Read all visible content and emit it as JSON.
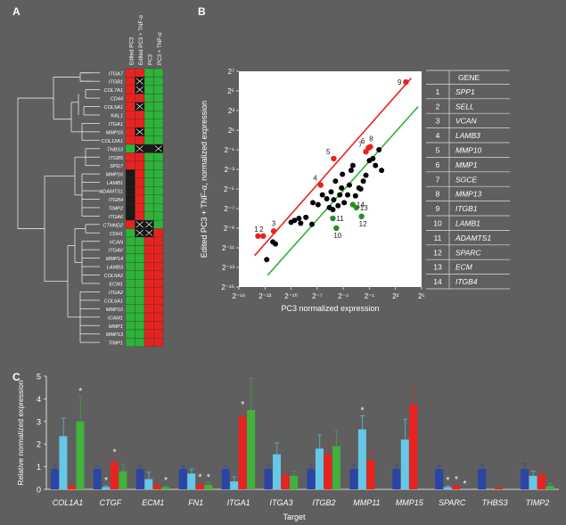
{
  "panel_a": {
    "letter": "A",
    "column_labels": [
      "Edited PC3",
      "Edited PC3 + TNF-α",
      "PC3",
      "PC3 + TNF-α"
    ],
    "genes": [
      "ITGA7",
      "ITGB1",
      "COL7A1",
      "CD44",
      "COL5A1",
      "KAL1",
      "ITGA1",
      "MMP15",
      "COL12A1",
      "THBS3",
      "ITGB5",
      "SPG7",
      "MMP16",
      "LAMB1",
      "ADAMTS1",
      "ITGB4",
      "TIMP2",
      "ITGA6",
      "CTNND2",
      "CDH1",
      "VCAN",
      "ITGAV",
      "MMP14",
      "LAMB3",
      "COL6A2",
      "ECM1",
      "ITGA2",
      "COL6A1",
      "MMP10",
      "ICAM1",
      "MMP1",
      "MMP13",
      "TIMP1"
    ],
    "cells": [
      [
        "r",
        "r",
        "g",
        "g"
      ],
      [
        "r",
        "x",
        "g",
        "g"
      ],
      [
        "r",
        "x",
        "g",
        "g"
      ],
      [
        "r",
        "r",
        "g",
        "g"
      ],
      [
        "r",
        "x",
        "g",
        "g"
      ],
      [
        "r",
        "r",
        "g",
        "g"
      ],
      [
        "r",
        "r",
        "g",
        "g"
      ],
      [
        "r",
        "x",
        "g",
        "g"
      ],
      [
        "r",
        "r",
        "g",
        "g"
      ],
      [
        "g",
        "x",
        "k",
        "x"
      ],
      [
        "r",
        "r",
        "g",
        "g"
      ],
      [
        "r",
        "r",
        "g",
        "g"
      ],
      [
        "k",
        "r",
        "g",
        "g"
      ],
      [
        "k",
        "r",
        "g",
        "g"
      ],
      [
        "k",
        "r",
        "g",
        "g"
      ],
      [
        "k",
        "r",
        "g",
        "g"
      ],
      [
        "k",
        "r",
        "g",
        "g"
      ],
      [
        "k",
        "r",
        "g",
        "g"
      ],
      [
        "r",
        "x",
        "x",
        "g"
      ],
      [
        "g",
        "x",
        "x",
        "r"
      ],
      [
        "g",
        "g",
        "r",
        "r"
      ],
      [
        "g",
        "g",
        "r",
        "r"
      ],
      [
        "g",
        "g",
        "r",
        "r"
      ],
      [
        "g",
        "g",
        "r",
        "r"
      ],
      [
        "g",
        "g",
        "r",
        "r"
      ],
      [
        "g",
        "g",
        "r",
        "r"
      ],
      [
        "g",
        "g",
        "r",
        "r"
      ],
      [
        "g",
        "g",
        "r",
        "r"
      ],
      [
        "g",
        "g",
        "r",
        "r"
      ],
      [
        "g",
        "g",
        "r",
        "r"
      ],
      [
        "g",
        "g",
        "r",
        "r"
      ],
      [
        "g",
        "g",
        "r",
        "r"
      ],
      [
        "g",
        "g",
        "r",
        "r"
      ]
    ],
    "colors": {
      "r": "#e8231f",
      "g": "#2fb23a",
      "k": "#1a1a1a",
      "x": "#111111"
    }
  },
  "panel_b": {
    "letter": "B",
    "table_header": "GENE",
    "table_rows": [
      {
        "num": "1",
        "gene": "SPP1"
      },
      {
        "num": "2",
        "gene": "SELL"
      },
      {
        "num": "3",
        "gene": "VCAN"
      },
      {
        "num": "4",
        "gene": "LAMB3"
      },
      {
        "num": "5",
        "gene": "MMP10"
      },
      {
        "num": "6",
        "gene": "MMP1"
      },
      {
        "num": "7",
        "gene": "SGCE"
      },
      {
        "num": "8",
        "gene": "MMP13"
      },
      {
        "num": "9",
        "gene": "ITGB1"
      },
      {
        "num": "10",
        "gene": "LAMB1"
      },
      {
        "num": "11",
        "gene": "ADAMTS1"
      },
      {
        "num": "12",
        "gene": "SPARC"
      },
      {
        "num": "13",
        "gene": "ECM"
      },
      {
        "num": "14",
        "gene": "ITGB4"
      }
    ]
  },
  "panel_c": {
    "letter": "C"
  },
  "chart_data": [
    {
      "type": "scatter",
      "title": "",
      "xlabel": "PC3 normalized expression",
      "ylabel": "Edited PC3 + TNF-α, normalized expression",
      "axis_scale": "log2",
      "xlim": [
        -16,
        5
      ],
      "ylim": [
        -15,
        7
      ],
      "x_ticks": [
        "2⁻¹⁶",
        "2⁻¹³",
        "2⁻¹⁰",
        "2⁻⁷",
        "2⁻⁴",
        "2⁻¹",
        "2²",
        "2⁵"
      ],
      "x_tick_values": [
        -16,
        -13,
        -10,
        -7,
        -4,
        -1,
        2,
        5
      ],
      "y_ticks": [
        "2⁻¹⁵",
        "2⁻¹³",
        "2⁻¹¹",
        "2⁻⁹",
        "2⁻⁷",
        "2⁻⁵",
        "2⁻³",
        "2⁻¹",
        "2¹",
        "2³",
        "2⁵",
        "2⁷"
      ],
      "y_tick_values": [
        -15,
        -13,
        -11,
        -9,
        -7,
        -5,
        -3,
        -1,
        1,
        3,
        5,
        7
      ],
      "lines": [
        {
          "color": "#e8231f",
          "x": [
            -14.2,
            3.8
          ],
          "y": [
            -11.8,
            6.3
          ]
        },
        {
          "color": "#2fb23a",
          "x": [
            -12.7,
            4.6
          ],
          "y": [
            -13.8,
            3.4
          ]
        }
      ],
      "points_black": [
        [
          -12.8,
          -12.2
        ],
        [
          -12.1,
          -10.4
        ],
        [
          -11.8,
          -10.6
        ],
        [
          -10.0,
          -8.4
        ],
        [
          -9.6,
          -8.2
        ],
        [
          -9.1,
          -8.0
        ],
        [
          -8.9,
          -8.5
        ],
        [
          -8.3,
          -7.9
        ],
        [
          -7.6,
          -8.6
        ],
        [
          -7.5,
          -6.4
        ],
        [
          -6.9,
          -6.6
        ],
        [
          -6.4,
          -5.6
        ],
        [
          -5.9,
          -6.0
        ],
        [
          -5.6,
          -6.9
        ],
        [
          -5.4,
          -5.3
        ],
        [
          -5.1,
          -6.1
        ],
        [
          -5.2,
          -7.1
        ],
        [
          -4.9,
          -4.2
        ],
        [
          -4.6,
          -6.7
        ],
        [
          -4.4,
          -5.6
        ],
        [
          -4.2,
          -4.9
        ],
        [
          -4.1,
          -3.5
        ],
        [
          -3.9,
          -6.4
        ],
        [
          -3.5,
          -5.6
        ],
        [
          -3.3,
          -4.6
        ],
        [
          -3.1,
          -3.1
        ],
        [
          -2.9,
          -2.6
        ],
        [
          -2.6,
          -5.7
        ],
        [
          -2.2,
          -4.9
        ],
        [
          -2.0,
          -5.0
        ],
        [
          -1.7,
          -4.2
        ],
        [
          -1.4,
          -3.6
        ],
        [
          -1.0,
          -2.1
        ],
        [
          -0.6,
          -1.9
        ],
        [
          -0.3,
          -2.6
        ],
        [
          0.1,
          -1.0
        ],
        [
          0.4,
          -3.1
        ]
      ],
      "points_red": [
        {
          "label": "9",
          "x": 3.2,
          "y": 5.9
        },
        {
          "label": "8",
          "x": -0.9,
          "y": -0.7
        },
        {
          "label": "7",
          "x": -1.4,
          "y": -1.2
        },
        {
          "label": "6",
          "x": -1.1,
          "y": -0.8
        },
        {
          "label": "5",
          "x": -5.1,
          "y": -1.9
        },
        {
          "label": "4",
          "x": -6.6,
          "y": -4.6
        },
        {
          "label": "3",
          "x": -12.0,
          "y": -9.3
        },
        {
          "label": "2",
          "x": -13.2,
          "y": -9.8
        },
        {
          "label": "1",
          "x": -13.8,
          "y": -9.8
        }
      ],
      "points_green": [
        {
          "label": "10",
          "x": -4.8,
          "y": -9.0
        },
        {
          "label": "11",
          "x": -5.2,
          "y": -8.0
        },
        {
          "label": "12",
          "x": -1.9,
          "y": -7.8
        },
        {
          "label": "13",
          "x": -2.5,
          "y": -6.9
        },
        {
          "label": "14",
          "x": -2.9,
          "y": -6.6
        }
      ]
    },
    {
      "type": "bar",
      "title": "",
      "xlabel": "Target",
      "ylabel": "Relative normalized expression",
      "ylim": [
        0,
        5
      ],
      "y_ticks": [
        "0",
        "1",
        "2",
        "3",
        "4",
        "5"
      ],
      "categories": [
        "COL1A1",
        "CTGF",
        "ECM1",
        "FN1",
        "ITGA1",
        "ITGA3",
        "ITGB2",
        "MMP11",
        "MMP15",
        "SPARC",
        "THBS3",
        "TIMP2"
      ],
      "series": [
        {
          "color": "#2b45a3",
          "values": [
            0.9,
            0.9,
            0.9,
            0.9,
            0.9,
            0.9,
            0.9,
            0.9,
            0.9,
            0.9,
            0.9,
            0.9
          ],
          "errors": [
            0.2,
            0.15,
            0.15,
            0.15,
            0.15,
            0.2,
            0.2,
            0.2,
            0.2,
            0.15,
            0.2,
            0.25
          ]
        },
        {
          "color": "#67c7e6",
          "values": [
            2.35,
            0.1,
            0.45,
            0.7,
            0.35,
            1.55,
            1.8,
            2.65,
            2.2,
            0.1,
            0.0,
            0.6
          ],
          "errors": [
            0.8,
            0.05,
            0.3,
            0.2,
            0.2,
            0.5,
            0.6,
            0.6,
            0.9,
            0.05,
            0.0,
            0.2
          ]
        },
        {
          "color": "#e8231f",
          "values": [
            0.15,
            1.2,
            0.2,
            0.2,
            3.2,
            0.65,
            1.55,
            1.3,
            3.75,
            0.15,
            0.05,
            0.65
          ],
          "errors": [
            0.05,
            0.2,
            0.1,
            0.1,
            0.3,
            0.2,
            0.5,
            0.4,
            0.8,
            0.05,
            0.05,
            0.3
          ]
        },
        {
          "color": "#43b23c",
          "values": [
            3.0,
            0.8,
            0.1,
            0.2,
            3.5,
            0.6,
            1.9,
            0.0,
            0.0,
            0.0,
            0.0,
            0.15
          ],
          "errors": [
            1.1,
            0.3,
            0.05,
            0.1,
            1.4,
            0.2,
            0.7,
            0.0,
            0.0,
            0.0,
            0.0,
            0.1
          ]
        }
      ],
      "stars": [
        {
          "cat": 0,
          "series": 3
        },
        {
          "cat": 1,
          "series": 1
        },
        {
          "cat": 1,
          "series": 2
        },
        {
          "cat": 2,
          "series": 3
        },
        {
          "cat": 3,
          "series": 2
        },
        {
          "cat": 3,
          "series": 3
        },
        {
          "cat": 4,
          "series": 2
        },
        {
          "cat": 7,
          "series": 1
        },
        {
          "cat": 9,
          "series": 1
        },
        {
          "cat": 9,
          "series": 2
        },
        {
          "cat": 9,
          "series": 3
        }
      ]
    }
  ]
}
